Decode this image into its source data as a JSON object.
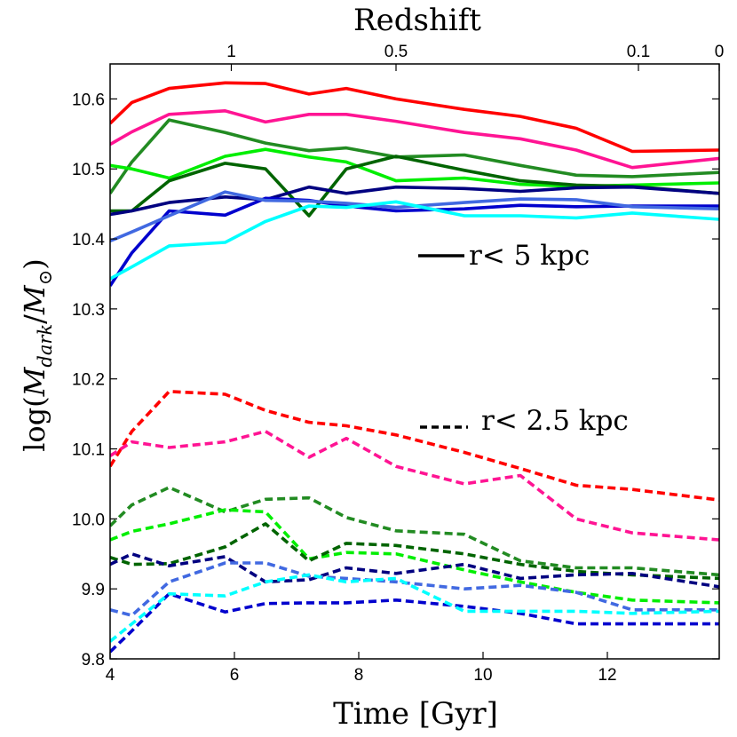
{
  "chart_data": {
    "type": "line",
    "title": "",
    "xlabel": "Time [Gyr]",
    "ylabel": "log(M_dark/M_⊙)",
    "ylabel_parts": {
      "open": "log(",
      "m1": "M",
      "sub1": "dark",
      "slash": "/",
      "m2": "M",
      "sub2": "⊙",
      "close": ")"
    },
    "xlim": [
      4,
      13.8
    ],
    "ylim": [
      9.8,
      10.65
    ],
    "xticks": [
      4,
      6,
      8,
      10,
      12
    ],
    "xtick_labels": [
      "4",
      "6",
      "8",
      "10",
      "12"
    ],
    "yticks": [
      9.8,
      9.9,
      10.0,
      10.1,
      10.2,
      10.3,
      10.4,
      10.5,
      10.6
    ],
    "ytick_labels": [
      "9.8",
      "9.9",
      "10.0",
      "10.1",
      "10.2",
      "10.3",
      "10.4",
      "10.5",
      "10.6"
    ],
    "top_axis": {
      "label": "Redshift",
      "ticks": [
        {
          "time": 5.95,
          "label": "1"
        },
        {
          "time": 8.6,
          "label": "0.5"
        },
        {
          "time": 12.5,
          "label": "0.1"
        },
        {
          "time": 13.8,
          "label": "0"
        }
      ]
    },
    "legend": [
      {
        "label": "r< 5 kpc",
        "style": "solid"
      },
      {
        "label": "r< 2.5 kpc",
        "style": "dashed"
      }
    ],
    "x": [
      4.0,
      4.35,
      4.95,
      5.85,
      6.5,
      7.2,
      7.8,
      8.6,
      9.7,
      10.6,
      11.5,
      12.4,
      13.8
    ],
    "series": [
      {
        "name": "red r<5",
        "color": "#ff0000",
        "style": "solid",
        "values": [
          10.565,
          10.595,
          10.615,
          10.623,
          10.622,
          10.607,
          10.615,
          10.6,
          10.585,
          10.575,
          10.558,
          10.525,
          10.527
        ]
      },
      {
        "name": "pink r<5",
        "color": "#ff1493",
        "style": "solid",
        "values": [
          10.535,
          10.553,
          10.578,
          10.583,
          10.567,
          10.578,
          10.578,
          10.568,
          10.552,
          10.543,
          10.527,
          10.502,
          10.515
        ]
      },
      {
        "name": "green r<5",
        "color": "#228b22",
        "style": "solid",
        "values": [
          10.465,
          10.51,
          10.57,
          10.552,
          10.537,
          10.526,
          10.53,
          10.517,
          10.52,
          10.505,
          10.491,
          10.489,
          10.495
        ]
      },
      {
        "name": "lime r<5",
        "color": "#00ee00",
        "style": "solid",
        "values": [
          10.505,
          10.5,
          10.487,
          10.518,
          10.528,
          10.517,
          10.51,
          10.483,
          10.487,
          10.478,
          10.475,
          10.477,
          10.48
        ]
      },
      {
        "name": "darkgreen r<5",
        "color": "#006400",
        "style": "solid",
        "values": [
          10.44,
          10.44,
          10.483,
          10.508,
          10.5,
          10.433,
          10.5,
          10.518,
          10.498,
          10.483,
          10.477,
          10.475,
          10.465
        ]
      },
      {
        "name": "navy r<5",
        "color": "#000080",
        "style": "solid",
        "values": [
          10.435,
          10.44,
          10.452,
          10.46,
          10.456,
          10.474,
          10.465,
          10.474,
          10.472,
          10.468,
          10.473,
          10.474,
          10.465
        ]
      },
      {
        "name": "blue r<5",
        "color": "#0000cd",
        "style": "solid",
        "values": [
          10.333,
          10.38,
          10.44,
          10.434,
          10.458,
          10.455,
          10.447,
          10.44,
          10.443,
          10.448,
          10.446,
          10.447,
          10.447
        ]
      },
      {
        "name": "royalblue r<5",
        "color": "#4169e1",
        "style": "solid",
        "values": [
          10.397,
          10.41,
          10.433,
          10.467,
          10.455,
          10.454,
          10.451,
          10.445,
          10.452,
          10.457,
          10.456,
          10.446,
          10.443
        ]
      },
      {
        "name": "cyan r<5",
        "color": "#00ffff",
        "style": "solid",
        "values": [
          10.343,
          10.36,
          10.39,
          10.395,
          10.425,
          10.447,
          10.445,
          10.453,
          10.433,
          10.433,
          10.43,
          10.437,
          10.428
        ]
      },
      {
        "name": "red r<2.5",
        "color": "#ff0000",
        "style": "dashed",
        "values": [
          10.075,
          10.125,
          10.182,
          10.178,
          10.155,
          10.138,
          10.133,
          10.12,
          10.095,
          10.072,
          10.048,
          10.042,
          10.027
        ]
      },
      {
        "name": "pink r<2.5",
        "color": "#ff1493",
        "style": "dashed",
        "values": [
          10.09,
          10.11,
          10.102,
          10.11,
          10.125,
          10.088,
          10.115,
          10.075,
          10.05,
          10.062,
          10.0,
          9.98,
          9.97
        ]
      },
      {
        "name": "green r<2.5",
        "color": "#228b22",
        "style": "dashed",
        "values": [
          9.99,
          10.02,
          10.045,
          10.01,
          10.028,
          10.03,
          10.002,
          9.983,
          9.978,
          9.94,
          9.93,
          9.93,
          9.92
        ]
      },
      {
        "name": "lime r<2.5",
        "color": "#00ee00",
        "style": "dashed",
        "values": [
          9.97,
          9.982,
          9.993,
          10.013,
          10.01,
          9.943,
          9.952,
          9.95,
          9.927,
          9.91,
          9.895,
          9.884,
          9.88
        ]
      },
      {
        "name": "darkgreen r<2.5",
        "color": "#006400",
        "style": "dashed",
        "values": [
          9.945,
          9.935,
          9.936,
          9.96,
          9.993,
          9.94,
          9.965,
          9.962,
          9.95,
          9.935,
          9.925,
          9.92,
          9.915
        ]
      },
      {
        "name": "navy r<2.5",
        "color": "#000080",
        "style": "dashed",
        "values": [
          9.935,
          9.95,
          9.933,
          9.946,
          9.91,
          9.913,
          9.93,
          9.922,
          9.935,
          9.915,
          9.92,
          9.922,
          9.903
        ]
      },
      {
        "name": "blue r<2.5",
        "color": "#0000cd",
        "style": "dashed",
        "values": [
          9.81,
          9.84,
          9.893,
          9.867,
          9.879,
          9.88,
          9.88,
          9.884,
          9.875,
          9.865,
          9.85,
          9.85,
          9.85
        ]
      },
      {
        "name": "royalblue r<2.5",
        "color": "#4169e1",
        "style": "dashed",
        "values": [
          9.87,
          9.862,
          9.91,
          9.937,
          9.937,
          9.918,
          9.915,
          9.91,
          9.9,
          9.905,
          9.895,
          9.87,
          9.87
        ]
      },
      {
        "name": "cyan r<2.5",
        "color": "#00ffff",
        "style": "dashed",
        "values": [
          9.825,
          9.85,
          9.893,
          9.89,
          9.91,
          9.92,
          9.91,
          9.915,
          9.868,
          9.868,
          9.868,
          9.865,
          9.868
        ]
      }
    ]
  }
}
